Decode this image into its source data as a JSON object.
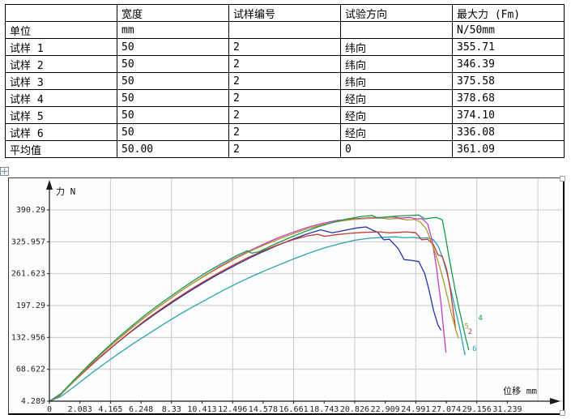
{
  "page": {
    "background": "#ffffff"
  },
  "table": {
    "columns": [
      "",
      "宽度",
      "试样编号",
      "试验方向",
      "最大力 (Fm)"
    ],
    "rows": [
      [
        "单位",
        "mm",
        "",
        "",
        "N/50mm"
      ],
      [
        "试样 1",
        "50",
        "2",
        "纬向",
        "355.71"
      ],
      [
        "试样 2",
        "50",
        "2",
        "纬向",
        "346.39"
      ],
      [
        "试样 3",
        "50",
        "2",
        "纬向",
        "375.58"
      ],
      [
        "试样 4",
        "50",
        "2",
        "经向",
        "378.68"
      ],
      [
        "试样 5",
        "50",
        "2",
        "经向",
        "374.10"
      ],
      [
        "试样 6",
        "50",
        "2",
        "经向",
        "336.08"
      ],
      [
        "平均值",
        "50.00",
        "2",
        "0",
        "361.09"
      ]
    ]
  },
  "icons": {
    "move_anchor": "move-anchor-icon",
    "resize_handle": "resize-handle"
  },
  "chart_data": {
    "type": "line",
    "title": "",
    "xlabel": "位移 mm",
    "ylabel": "力 N",
    "x_tick_labels": [
      "0",
      "2.083",
      "4.165",
      "6.248",
      "8.33",
      "10.413",
      "12.496",
      "14.578",
      "16.661",
      "18.743",
      "20.826",
      "22.909",
      "24.991",
      "27.074",
      "29.156",
      "31.239"
    ],
    "y_tick_labels": [
      "4.289",
      "68.622",
      "132.956",
      "197.29",
      "261.623",
      "325.957",
      "390.29"
    ],
    "xlim": [
      0,
      35
    ],
    "ylim": [
      4.289,
      390.29
    ],
    "grid": true,
    "legend": "curve-end-numbers",
    "axis_color": "#1a1a1a",
    "grid_color": "#c9c9c9",
    "series": [
      {
        "key": "6",
        "name": "试样 6",
        "color": "#2aa2ac",
        "max_force": 336.08,
        "end_label": "6",
        "label_at": [
          28.85,
          106
        ],
        "points": [
          [
            0,
            4.3
          ],
          [
            0.8,
            14
          ],
          [
            1.8,
            36
          ],
          [
            2.8,
            59
          ],
          [
            3.8,
            81
          ],
          [
            4.8,
            102
          ],
          [
            5.8,
            122
          ],
          [
            6.8,
            141
          ],
          [
            7.8,
            160
          ],
          [
            8.8,
            178
          ],
          [
            9.8,
            195
          ],
          [
            10.8,
            211
          ],
          [
            11.8,
            227
          ],
          [
            12.8,
            242
          ],
          [
            13.8,
            256
          ],
          [
            14.8,
            269
          ],
          [
            15.8,
            281
          ],
          [
            16.8,
            293
          ],
          [
            17.8,
            304
          ],
          [
            18.8,
            314
          ],
          [
            19.8,
            322
          ],
          [
            20.8,
            329
          ],
          [
            21.8,
            333
          ],
          [
            22.8,
            335
          ],
          [
            23.6,
            336
          ],
          [
            24.2,
            334
          ],
          [
            24.8,
            335
          ],
          [
            25.3,
            333
          ],
          [
            25.8,
            334
          ],
          [
            26.2,
            330
          ],
          [
            26.5,
            318
          ],
          [
            26.8,
            296
          ],
          [
            27.1,
            265
          ],
          [
            27.4,
            228
          ],
          [
            27.7,
            188
          ],
          [
            28.0,
            150
          ],
          [
            28.2,
            120
          ],
          [
            28.35,
            98
          ]
        ]
      },
      {
        "key": "1",
        "name": "试样 1",
        "color": "#2733a8",
        "max_force": 355.71,
        "end_label": "",
        "label_at": null,
        "points": [
          [
            0,
            4.3
          ],
          [
            0.6,
            14
          ],
          [
            1.5,
            40
          ],
          [
            2.5,
            68
          ],
          [
            3.5,
            94
          ],
          [
            4.5,
            119
          ],
          [
            5.5,
            143
          ],
          [
            6.5,
            165
          ],
          [
            7.5,
            186
          ],
          [
            8.5,
            206
          ],
          [
            9.5,
            225
          ],
          [
            10.5,
            243
          ],
          [
            11.5,
            260
          ],
          [
            12.5,
            276
          ],
          [
            13.5,
            291
          ],
          [
            14.5,
            305
          ],
          [
            15.5,
            318
          ],
          [
            16.5,
            330
          ],
          [
            17.5,
            341
          ],
          [
            18.5,
            350
          ],
          [
            19.3,
            344
          ],
          [
            20.3,
            350
          ],
          [
            21.0,
            354
          ],
          [
            21.6,
            356
          ],
          [
            22.0,
            350
          ],
          [
            22.4,
            345
          ],
          [
            22.8,
            330
          ],
          [
            23.2,
            331
          ],
          [
            23.8,
            312
          ],
          [
            24.2,
            290
          ],
          [
            24.8,
            288
          ],
          [
            25.2,
            286
          ],
          [
            25.6,
            262
          ],
          [
            25.9,
            228
          ],
          [
            26.2,
            188
          ],
          [
            26.5,
            158
          ],
          [
            26.7,
            148
          ]
        ]
      },
      {
        "key": "2",
        "name": "试样 2",
        "color": "#c03a30",
        "max_force": 346.39,
        "end_label": "2",
        "label_at": [
          28.55,
          140
        ],
        "points": [
          [
            0,
            4.3
          ],
          [
            0.7,
            16
          ],
          [
            1.6,
            42
          ],
          [
            2.6,
            70
          ],
          [
            3.6,
            97
          ],
          [
            4.6,
            122
          ],
          [
            5.6,
            146
          ],
          [
            6.6,
            169
          ],
          [
            7.6,
            190
          ],
          [
            8.6,
            210
          ],
          [
            9.6,
            229
          ],
          [
            10.6,
            247
          ],
          [
            11.6,
            264
          ],
          [
            12.6,
            280
          ],
          [
            13.6,
            295
          ],
          [
            14.6,
            308
          ],
          [
            15.6,
            320
          ],
          [
            16.6,
            330
          ],
          [
            17.6,
            338
          ],
          [
            18.3,
            341
          ],
          [
            18.8,
            337
          ],
          [
            19.5,
            340
          ],
          [
            20.5,
            343
          ],
          [
            21.5,
            345
          ],
          [
            22.5,
            346
          ],
          [
            23.2,
            344
          ],
          [
            23.8,
            345
          ],
          [
            24.4,
            346
          ],
          [
            25.0,
            344
          ],
          [
            25.4,
            330
          ],
          [
            25.8,
            331
          ],
          [
            26.2,
            320
          ],
          [
            26.5,
            300
          ],
          [
            26.8,
            296
          ],
          [
            27.1,
            270
          ],
          [
            27.35,
            230
          ],
          [
            27.55,
            185
          ],
          [
            27.7,
            152
          ]
        ]
      },
      {
        "key": "3",
        "name": "试样 3",
        "color": "#c43bc4",
        "max_force": 375.58,
        "end_label": "",
        "label_at": null,
        "points": [
          [
            0,
            4.3
          ],
          [
            0.7,
            15
          ],
          [
            1.6,
            43
          ],
          [
            2.6,
            73
          ],
          [
            3.6,
            101
          ],
          [
            4.6,
            127
          ],
          [
            5.6,
            152
          ],
          [
            6.6,
            176
          ],
          [
            7.6,
            198
          ],
          [
            8.6,
            219
          ],
          [
            9.6,
            239
          ],
          [
            10.6,
            258
          ],
          [
            11.6,
            276
          ],
          [
            12.6,
            292
          ],
          [
            13.6,
            307
          ],
          [
            14.6,
            321
          ],
          [
            15.6,
            334
          ],
          [
            16.6,
            345
          ],
          [
            17.6,
            355
          ],
          [
            18.6,
            363
          ],
          [
            19.6,
            369
          ],
          [
            20.6,
            372
          ],
          [
            21.6,
            374
          ],
          [
            22.6,
            375
          ],
          [
            23.4,
            376
          ],
          [
            24.0,
            374
          ],
          [
            24.6,
            375
          ],
          [
            25.0,
            372
          ],
          [
            25.4,
            373
          ],
          [
            25.8,
            362
          ],
          [
            26.1,
            330
          ],
          [
            26.4,
            275
          ],
          [
            26.7,
            205
          ],
          [
            26.9,
            145
          ],
          [
            27.05,
            103
          ]
        ]
      },
      {
        "key": "5",
        "name": "试样 5",
        "color": "#b09a28",
        "max_force": 374.1,
        "end_label": "5",
        "label_at": [
          28.3,
          151
        ],
        "points": [
          [
            0,
            4.3
          ],
          [
            0.8,
            18
          ],
          [
            1.7,
            46
          ],
          [
            2.7,
            76
          ],
          [
            3.7,
            104
          ],
          [
            4.7,
            130
          ],
          [
            5.7,
            155
          ],
          [
            6.7,
            178
          ],
          [
            7.7,
            200
          ],
          [
            8.7,
            221
          ],
          [
            9.7,
            241
          ],
          [
            10.7,
            259
          ],
          [
            11.7,
            276
          ],
          [
            12.7,
            292
          ],
          [
            13.7,
            307
          ],
          [
            14.7,
            320
          ],
          [
            15.7,
            332
          ],
          [
            16.7,
            343
          ],
          [
            17.7,
            353
          ],
          [
            18.7,
            361
          ],
          [
            19.7,
            367
          ],
          [
            20.7,
            371
          ],
          [
            21.7,
            373
          ],
          [
            22.5,
            374
          ],
          [
            23.2,
            372
          ],
          [
            23.8,
            373
          ],
          [
            24.4,
            370
          ],
          [
            24.9,
            371
          ],
          [
            25.3,
            366
          ],
          [
            25.7,
            352
          ],
          [
            26.0,
            330
          ],
          [
            26.3,
            305
          ],
          [
            26.6,
            278
          ],
          [
            26.9,
            245
          ],
          [
            27.2,
            208
          ],
          [
            27.5,
            172
          ],
          [
            27.75,
            145
          ],
          [
            27.9,
            132
          ]
        ]
      },
      {
        "key": "4",
        "name": "试样 4",
        "color": "#179a48",
        "max_force": 378.68,
        "end_label": "4",
        "label_at": [
          29.25,
          168
        ],
        "points": [
          [
            0,
            4.3
          ],
          [
            0.8,
            20
          ],
          [
            1.7,
            48
          ],
          [
            2.7,
            78
          ],
          [
            3.7,
            106
          ],
          [
            4.7,
            133
          ],
          [
            5.7,
            158
          ],
          [
            6.7,
            182
          ],
          [
            7.7,
            204
          ],
          [
            8.7,
            225
          ],
          [
            9.7,
            245
          ],
          [
            10.7,
            264
          ],
          [
            11.7,
            281
          ],
          [
            12.7,
            297
          ],
          [
            13.5,
            308
          ],
          [
            13.8,
            303
          ],
          [
            14.3,
            306
          ],
          [
            15.3,
            320
          ],
          [
            16.3,
            333
          ],
          [
            17.3,
            345
          ],
          [
            18.3,
            356
          ],
          [
            19.3,
            365
          ],
          [
            20.3,
            372
          ],
          [
            21.3,
            377
          ],
          [
            22.0,
            379
          ],
          [
            22.4,
            374
          ],
          [
            23.0,
            376
          ],
          [
            23.8,
            378
          ],
          [
            24.6,
            379
          ],
          [
            25.2,
            380
          ],
          [
            25.6,
            372
          ],
          [
            26.0,
            374
          ],
          [
            26.4,
            375
          ],
          [
            26.8,
            370
          ],
          [
            27.0,
            340
          ],
          [
            27.2,
            305
          ],
          [
            27.45,
            265
          ],
          [
            27.7,
            225
          ],
          [
            27.95,
            190
          ],
          [
            28.2,
            158
          ],
          [
            28.4,
            132
          ],
          [
            28.6,
            108
          ]
        ]
      }
    ]
  }
}
